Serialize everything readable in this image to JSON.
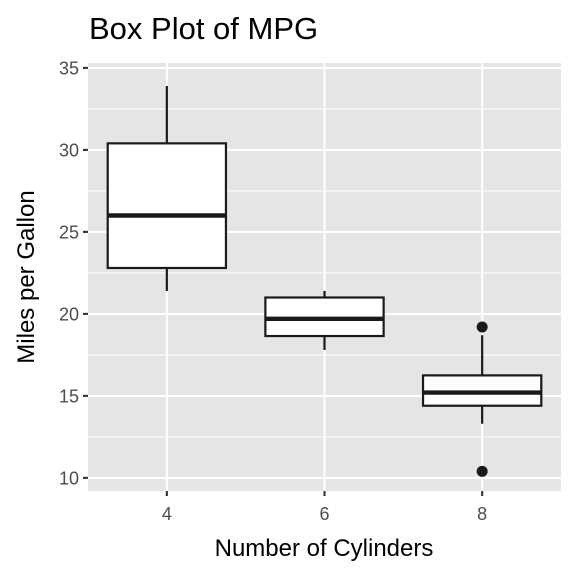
{
  "chart_data": {
    "type": "box",
    "title": "Box Plot of MPG",
    "xlabel": "Number of Cylinders",
    "ylabel": "Miles per Gallon",
    "categories": [
      "4",
      "6",
      "8"
    ],
    "ylim": [
      9.2,
      35.3
    ],
    "yticks": [
      10,
      15,
      20,
      25,
      30,
      35
    ],
    "grid": true,
    "boxes": [
      {
        "category": "4",
        "min": 21.4,
        "q1": 22.8,
        "median": 26.0,
        "q3": 30.4,
        "max": 33.9,
        "outliers": []
      },
      {
        "category": "6",
        "min": 17.8,
        "q1": 18.65,
        "median": 19.7,
        "q3": 21.0,
        "max": 21.4,
        "outliers": []
      },
      {
        "category": "8",
        "min": 13.3,
        "q1": 14.4,
        "median": 15.2,
        "q3": 16.25,
        "max": 18.7,
        "outliers": [
          19.2,
          10.4
        ]
      }
    ],
    "colors": {
      "panel": "#e5e5e5",
      "grid": "#ffffff",
      "box_fill": "#ffffff",
      "box_stroke": "#1a1a1a",
      "tick_text": "#4d4d4d"
    }
  }
}
